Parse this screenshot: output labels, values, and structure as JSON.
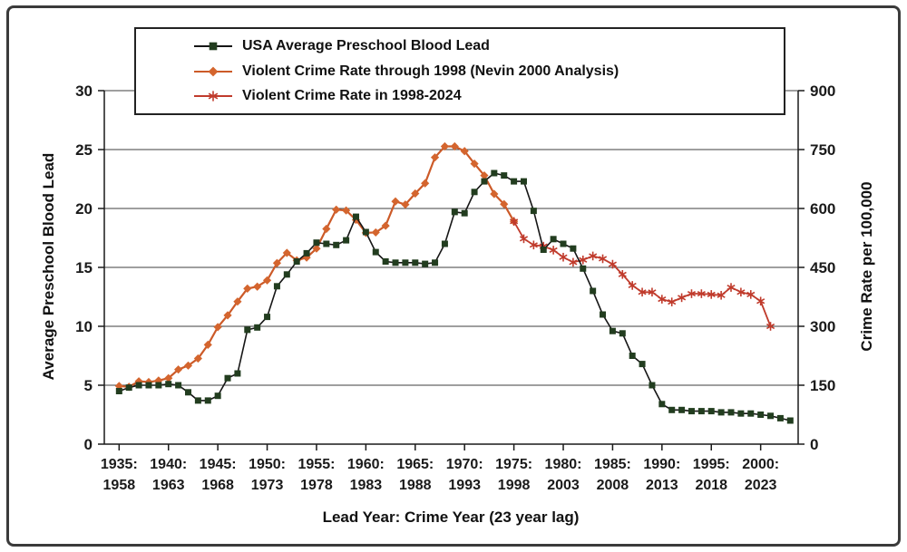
{
  "chart_data": {
    "type": "line",
    "title": "",
    "xlabel": "Lead Year: Crime Year (23 year lag)",
    "ylabel_left": "Average Preschool Blood Lead",
    "ylabel_right": "Crime Rate per 100,000",
    "y_left": {
      "min": 0,
      "max": 30,
      "ticks": [
        0,
        5,
        10,
        15,
        20,
        25,
        30
      ]
    },
    "y_right": {
      "min": 0,
      "max": 900,
      "ticks": [
        0,
        150,
        300,
        450,
        600,
        750,
        900
      ]
    },
    "grid": "horizontal",
    "legend_position": "top",
    "x_ticks": [
      {
        "year": 1935,
        "lead": "1935:",
        "crime": "1958"
      },
      {
        "year": 1940,
        "lead": "1940:",
        "crime": "1963"
      },
      {
        "year": 1945,
        "lead": "1945:",
        "crime": "1968"
      },
      {
        "year": 1950,
        "lead": "1950:",
        "crime": "1973"
      },
      {
        "year": 1955,
        "lead": "1955:",
        "crime": "1978"
      },
      {
        "year": 1960,
        "lead": "1960:",
        "crime": "1983"
      },
      {
        "year": 1965,
        "lead": "1965:",
        "crime": "1988"
      },
      {
        "year": 1970,
        "lead": "1970:",
        "crime": "1993"
      },
      {
        "year": 1975,
        "lead": "1975:",
        "crime": "1998"
      },
      {
        "year": 1980,
        "lead": "1980:",
        "crime": "2003"
      },
      {
        "year": 1985,
        "lead": "1985:",
        "crime": "2008"
      },
      {
        "year": 1990,
        "lead": "1990:",
        "crime": "2013"
      },
      {
        "year": 1995,
        "lead": "1995:",
        "crime": "2018"
      },
      {
        "year": 2000,
        "lead": "2000:",
        "crime": "2023"
      }
    ],
    "series": [
      {
        "name": "USA Average Preschool Blood Lead",
        "axis": "left",
        "marker": "square",
        "marker_color": "#223d1f",
        "line_color": "#161616",
        "line_width": 1.6,
        "start_year": 1935,
        "values": [
          4.5,
          4.8,
          5.0,
          5.0,
          5.0,
          5.1,
          5.0,
          4.4,
          3.7,
          3.7,
          4.1,
          5.6,
          6.0,
          9.7,
          9.9,
          10.8,
          13.4,
          14.4,
          15.5,
          16.2,
          17.1,
          17.0,
          16.9,
          17.3,
          19.3,
          18.0,
          16.3,
          15.5,
          15.4,
          15.4,
          15.4,
          15.3,
          15.4,
          17.0,
          19.7,
          19.6,
          21.4,
          22.3,
          23.0,
          22.8,
          22.3,
          22.3,
          19.8,
          16.5,
          17.4,
          17.0,
          16.6,
          14.9,
          13.0,
          11.0,
          9.6,
          9.4,
          7.5,
          6.8,
          5.0,
          3.4,
          2.9,
          2.9,
          2.8,
          2.8,
          2.8,
          2.7,
          2.7,
          2.6,
          2.6,
          2.5,
          2.4,
          2.2,
          2.0
        ]
      },
      {
        "name": "Violent Crime Rate through 1998 (Nevin 2000 Analysis)",
        "axis": "right",
        "marker": "diamond",
        "marker_color": "#d4652e",
        "line_color": "#cc5a28",
        "line_width": 2.2,
        "start_year": 1935,
        "values": [
          148,
          146,
          160,
          158,
          162,
          168,
          190,
          200,
          218,
          253,
          298,
          328,
          363,
          396,
          401,
          417,
          461,
          487,
          468,
          475,
          498,
          548,
          597,
          595,
          571,
          538,
          539,
          556,
          618,
          610,
          638,
          664,
          730,
          758,
          758,
          746,
          714,
          684,
          637,
          611,
          567
        ]
      },
      {
        "name": "Violent Crime Rate in 1998-2024",
        "axis": "right",
        "marker": "star",
        "marker_color": "#c03b2c",
        "line_color": "#c03b2c",
        "line_width": 1.8,
        "start_year": 1975,
        "values": [
          567,
          523,
          507,
          504,
          494,
          476,
          463,
          469,
          479,
          472,
          458,
          432,
          404,
          387,
          387,
          369,
          362,
          373,
          383,
          383,
          381,
          379,
          399,
          387,
          381,
          364,
          300
        ]
      }
    ]
  }
}
